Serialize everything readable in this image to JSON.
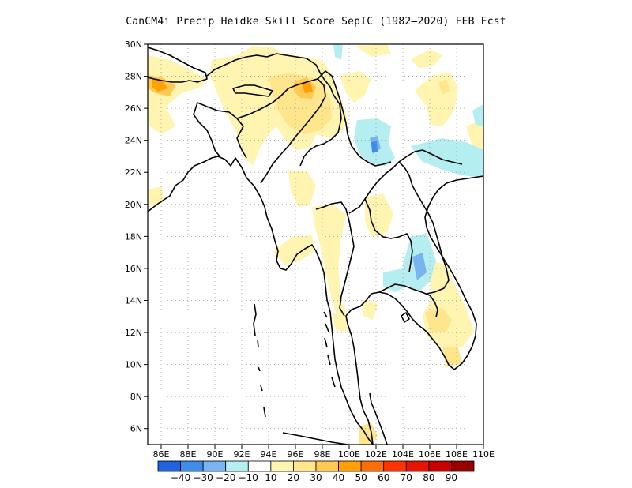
{
  "title": "CanCM4i Precip Heidke Skill Score SepIC (1982—2020) FEB Fcst",
  "axes": {
    "lat_labels": [
      "30N",
      "28N",
      "26N",
      "24N",
      "22N",
      "20N",
      "18N",
      "16N",
      "14N",
      "12N",
      "10N",
      "8N",
      "6N"
    ],
    "lon_labels": [
      "86E",
      "88E",
      "90E",
      "92E",
      "94E",
      "96E",
      "98E",
      "100E",
      "102E",
      "104E",
      "106E",
      "108E",
      "110E"
    ]
  },
  "colorbar": {
    "labels": [
      "−40",
      "−30",
      "−20",
      "−10",
      "10",
      "20",
      "30",
      "40",
      "50",
      "60",
      "70",
      "80",
      "90"
    ],
    "colors": [
      "#1e62dc",
      "#3c8ce8",
      "#78b4f0",
      "#b4eef0",
      "#ffffff",
      "#fff5b0",
      "#ffe68c",
      "#ffc850",
      "#ffa000",
      "#ff6e00",
      "#ff3200",
      "#e61400",
      "#c80000",
      "#960000"
    ]
  },
  "chart_data": {
    "type": "heatmap",
    "title": "CanCM4i Precip Heidke Skill Score SepIC (1982—2020) FEB Fcst",
    "x_range": [
      85,
      110
    ],
    "y_range": [
      5,
      30
    ],
    "x_unit": "E",
    "y_unit": "N",
    "grid": true,
    "levels": [
      -40,
      -30,
      -20,
      -10,
      10,
      20,
      30,
      40,
      50,
      60,
      70,
      80,
      90
    ],
    "regions": [
      {
        "lon": 85.6,
        "lat": 27.0,
        "value": 40
      },
      {
        "lon": 86.5,
        "lat": 26.5,
        "value": 30
      },
      {
        "lon": 97.2,
        "lat": 27.0,
        "value": 50
      },
      {
        "lon": 97.0,
        "lat": 26.3,
        "value": 30
      },
      {
        "lon": 94.0,
        "lat": 24.0,
        "value": 20
      },
      {
        "lon": 95.5,
        "lat": 22.0,
        "value": 20
      },
      {
        "lon": 101.2,
        "lat": 23.5,
        "value": -20
      },
      {
        "lon": 101.8,
        "lat": 23.3,
        "value": -30
      },
      {
        "lon": 109.5,
        "lat": 23.0,
        "value": -10
      },
      {
        "lon": 99.8,
        "lat": 16.0,
        "value": 20
      },
      {
        "lon": 103.6,
        "lat": 16.0,
        "value": -20
      },
      {
        "lon": 101.6,
        "lat": 15.2,
        "value": -10
      },
      {
        "lon": 105.8,
        "lat": 12.5,
        "value": 20
      },
      {
        "lon": 103.5,
        "lat": 5.7,
        "value": 20
      },
      {
        "lon": 107.0,
        "lat": 27.0,
        "value": 10
      }
    ]
  }
}
